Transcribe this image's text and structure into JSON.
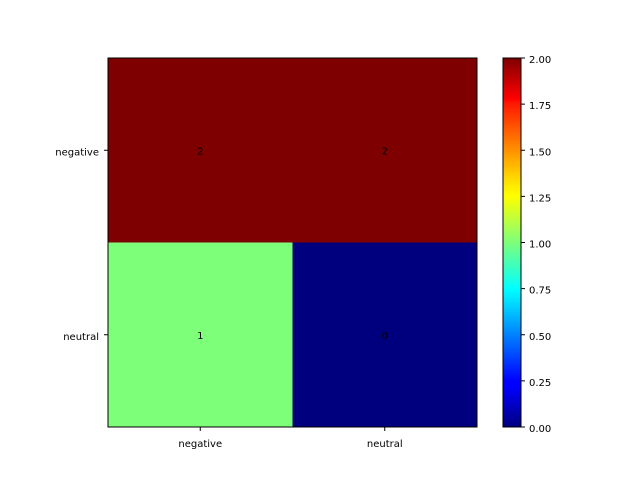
{
  "chart_data": {
    "type": "heatmap",
    "title": "",
    "xlabel": "",
    "ylabel": "",
    "x_categories": [
      "negative",
      "neutral"
    ],
    "y_categories": [
      "negative",
      "neutral"
    ],
    "values": [
      [
        2,
        2
      ],
      [
        1,
        0
      ]
    ],
    "cell_labels": [
      [
        "2",
        "2"
      ],
      [
        "1",
        "0"
      ]
    ],
    "cell_colors": [
      [
        "#7f0000",
        "#7f0000"
      ],
      [
        "#7dff7a",
        "#00007f"
      ]
    ],
    "colormap": "jet",
    "colorbar": {
      "range": [
        0,
        2
      ],
      "ticks": [
        0,
        0.25,
        0.5,
        0.75,
        1.0,
        1.25,
        1.5,
        1.75,
        2.0
      ],
      "tick_labels": [
        "0.00",
        "0.25",
        "0.50",
        "0.75",
        "1.00",
        "1.25",
        "1.50",
        "1.75",
        "2.00"
      ]
    },
    "grid": false
  }
}
